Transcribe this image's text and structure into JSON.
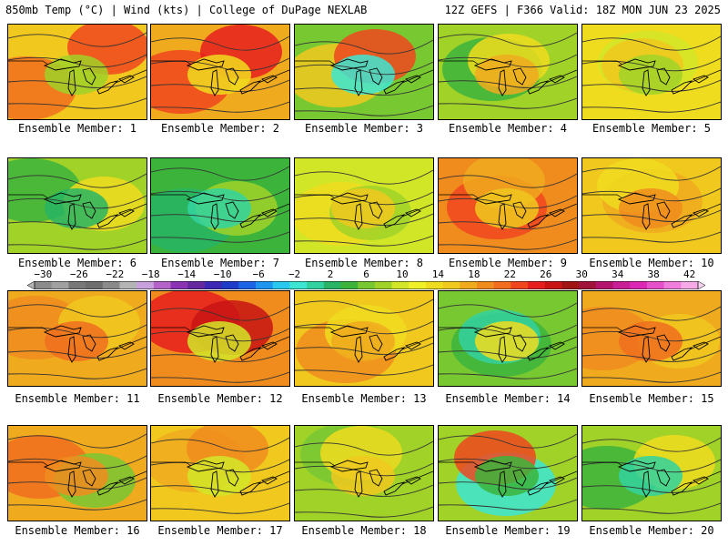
{
  "header": {
    "left": "850mb Temp (°C) | Wind (kts) | College of DuPage NEXLAB",
    "right": "12Z GEFS | F366 Valid: 18Z MON JUN 23 2025"
  },
  "colorbar": {
    "ticks": [
      "−30",
      "−26",
      "−22",
      "−18",
      "−14",
      "−10",
      "−6",
      "−2",
      "2",
      "6",
      "10",
      "14",
      "18",
      "22",
      "26",
      "30",
      "34",
      "38",
      "42"
    ],
    "colors": [
      "#8c8c8c",
      "#a0a0a0",
      "#787878",
      "#6e6e6e",
      "#8a8a8a",
      "#b4b4b4",
      "#c8a0dc",
      "#b464c8",
      "#8c32b4",
      "#6428a0",
      "#3c28b4",
      "#1e3cc8",
      "#1e64e6",
      "#1e96f0",
      "#28c8f0",
      "#3ce6d2",
      "#32d2a0",
      "#28b464",
      "#3cb43c",
      "#78c832",
      "#a0d228",
      "#d2e628",
      "#f0f028",
      "#f0dc1e",
      "#f0c81e",
      "#f0aa1e",
      "#f08c1e",
      "#f06e1e",
      "#f0461e",
      "#e61e1e",
      "#c81414",
      "#a01414",
      "#a0143c",
      "#b4146e",
      "#c81e96",
      "#dc28b4",
      "#e650c8",
      "#f07ddc",
      "#f5aae6"
    ]
  },
  "panels": [
    {
      "caption": "Ensemble Member: 1"
    },
    {
      "caption": "Ensemble Member: 2"
    },
    {
      "caption": "Ensemble Member: 3"
    },
    {
      "caption": "Ensemble Member: 4"
    },
    {
      "caption": "Ensemble Member: 5"
    },
    {
      "caption": "Ensemble Member: 6"
    },
    {
      "caption": "Ensemble Member: 7"
    },
    {
      "caption": "Ensemble Member: 8"
    },
    {
      "caption": "Ensemble Member: 9"
    },
    {
      "caption": "Ensemble Member: 10"
    },
    {
      "caption": "Ensemble Member: 11"
    },
    {
      "caption": "Ensemble Member: 12"
    },
    {
      "caption": "Ensemble Member: 13"
    },
    {
      "caption": "Ensemble Member: 14"
    },
    {
      "caption": "Ensemble Member: 15"
    },
    {
      "caption": "Ensemble Member: 16"
    },
    {
      "caption": "Ensemble Member: 17"
    },
    {
      "caption": "Ensemble Member: 18"
    },
    {
      "caption": "Ensemble Member: 19"
    },
    {
      "caption": "Ensemble Member: 20"
    }
  ]
}
